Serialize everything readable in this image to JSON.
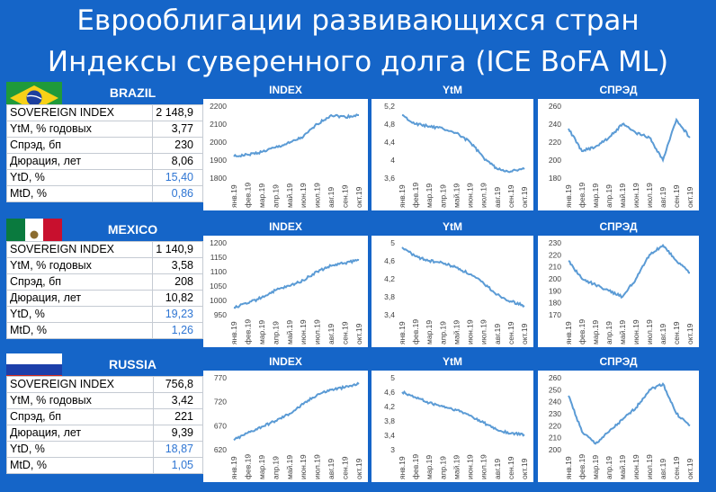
{
  "title_line1": "Еврооблигации развивающихся стран",
  "title_line2": "Индексы суверенного долга (ICE BoFA ML)",
  "chart_headers": [
    "INDEX",
    "YtM",
    "СПРЭД"
  ],
  "colors": {
    "background": "#1565c8",
    "line": "#5b9bd5",
    "blue_value": "#2e75d3"
  },
  "months": [
    "янв.19",
    "фев.19",
    "мар.19",
    "апр.19",
    "май.19",
    "июн.19",
    "июл.19",
    "авг.19",
    "сен.19",
    "окт.19"
  ],
  "sections": [
    {
      "country": "BRAZIL",
      "flag": "brazil-flag",
      "rows": [
        {
          "label": "SOVEREIGN INDEX",
          "value": "2 148,9",
          "blue": false
        },
        {
          "label": "YtM, % годовых",
          "value": "3,77",
          "blue": false
        },
        {
          "label": "Спрэд, бп",
          "value": "230",
          "blue": false
        },
        {
          "label": "Дюрация, лет",
          "value": "8,06",
          "blue": false
        },
        {
          "label": "YtD, %",
          "value": "15,40",
          "blue": true
        },
        {
          "label": "MtD, %",
          "value": "0,86",
          "blue": true
        }
      ]
    },
    {
      "country": "MEXICO",
      "flag": "mexico-flag",
      "rows": [
        {
          "label": "SOVEREIGN INDEX",
          "value": "1 140,9",
          "blue": false
        },
        {
          "label": "YtM, % годовых",
          "value": "3,58",
          "blue": false
        },
        {
          "label": "Спрэд, бп",
          "value": "208",
          "blue": false
        },
        {
          "label": "Дюрация, лет",
          "value": "10,82",
          "blue": false
        },
        {
          "label": "YtD, %",
          "value": "19,23",
          "blue": true
        },
        {
          "label": "MtD, %",
          "value": "1,26",
          "blue": true
        }
      ]
    },
    {
      "country": "RUSSIA",
      "flag": "russia-flag",
      "rows": [
        {
          "label": "SOVEREIGN INDEX",
          "value": "756,8",
          "blue": false
        },
        {
          "label": "YtM, % годовых",
          "value": "3,42",
          "blue": false
        },
        {
          "label": "Спрэд, бп",
          "value": "221",
          "blue": false
        },
        {
          "label": "Дюрация, лет",
          "value": "9,39",
          "blue": false
        },
        {
          "label": "YtD, %",
          "value": "18,87",
          "blue": true
        },
        {
          "label": "MtD, %",
          "value": "1,05",
          "blue": true
        }
      ]
    }
  ],
  "chart_data": [
    {
      "type": "line",
      "title": "INDEX",
      "country": "BRAZIL",
      "ylim": [
        1800,
        2200
      ],
      "yticks": [
        1800,
        1900,
        2000,
        2100,
        2200
      ],
      "x": [
        "янв.19",
        "фев.19",
        "мар.19",
        "апр.19",
        "май.19",
        "июн.19",
        "июл.19",
        "авг.19",
        "сен.19",
        "окт.19"
      ],
      "values": [
        1920,
        1930,
        1945,
        1970,
        1995,
        2030,
        2100,
        2150,
        2140,
        2150
      ]
    },
    {
      "type": "line",
      "title": "YtM",
      "country": "BRAZIL",
      "ylim": [
        3.6,
        5.2
      ],
      "yticks": [
        3.6,
        4.0,
        4.4,
        4.8,
        5.2
      ],
      "x": [
        "янв.19",
        "фев.19",
        "мар.19",
        "апр.19",
        "май.19",
        "июн.19",
        "июл.19",
        "авг.19",
        "сен.19",
        "окт.19"
      ],
      "values": [
        5.0,
        4.8,
        4.75,
        4.7,
        4.6,
        4.4,
        4.05,
        3.8,
        3.75,
        3.8
      ]
    },
    {
      "type": "line",
      "title": "СПРЭД",
      "country": "BRAZIL",
      "ylim": [
        180,
        260
      ],
      "yticks": [
        180,
        200,
        220,
        240,
        260
      ],
      "x": [
        "янв.19",
        "фев.19",
        "мар.19",
        "апр.19",
        "май.19",
        "июн.19",
        "июл.19",
        "авг.19",
        "сен.19",
        "окт.19"
      ],
      "values": [
        235,
        210,
        215,
        225,
        240,
        230,
        225,
        200,
        245,
        225
      ]
    },
    {
      "type": "line",
      "title": "INDEX",
      "country": "MEXICO",
      "ylim": [
        950,
        1200
      ],
      "yticks": [
        950,
        1000,
        1050,
        1100,
        1150,
        1200
      ],
      "x": [
        "янв.19",
        "фев.19",
        "мар.19",
        "апр.19",
        "май.19",
        "июн.19",
        "июл.19",
        "авг.19",
        "сен.19",
        "окт.19"
      ],
      "values": [
        975,
        990,
        1010,
        1035,
        1050,
        1070,
        1100,
        1120,
        1130,
        1140
      ]
    },
    {
      "type": "line",
      "title": "YtM",
      "country": "MEXICO",
      "ylim": [
        3.4,
        5.0
      ],
      "yticks": [
        3.4,
        3.8,
        4.2,
        4.6,
        5.0
      ],
      "x": [
        "янв.19",
        "фев.19",
        "мар.19",
        "апр.19",
        "май.19",
        "июн.19",
        "июл.19",
        "авг.19",
        "сен.19",
        "окт.19"
      ],
      "values": [
        4.9,
        4.7,
        4.6,
        4.55,
        4.45,
        4.3,
        4.1,
        3.85,
        3.7,
        3.6
      ]
    },
    {
      "type": "line",
      "title": "СПРЭД",
      "country": "MEXICO",
      "ylim": [
        170,
        230
      ],
      "yticks": [
        170,
        180,
        190,
        200,
        210,
        220,
        230
      ],
      "x": [
        "янв.19",
        "фев.19",
        "мар.19",
        "апр.19",
        "май.19",
        "июн.19",
        "июл.19",
        "авг.19",
        "сен.19",
        "окт.19"
      ],
      "values": [
        215,
        200,
        195,
        190,
        185,
        200,
        220,
        228,
        215,
        205
      ]
    },
    {
      "type": "line",
      "title": "INDEX",
      "country": "RUSSIA",
      "ylim": [
        620,
        770
      ],
      "yticks": [
        620,
        670,
        720,
        770
      ],
      "x": [
        "янв.19",
        "фев.19",
        "мар.19",
        "апр.19",
        "май.19",
        "июн.19",
        "июл.19",
        "авг.19",
        "сен.19",
        "окт.19"
      ],
      "values": [
        640,
        655,
        668,
        680,
        695,
        715,
        735,
        745,
        750,
        757
      ]
    },
    {
      "type": "line",
      "title": "YtM",
      "country": "RUSSIA",
      "ylim": [
        3.0,
        5.0
      ],
      "yticks": [
        3.0,
        3.4,
        3.8,
        4.2,
        4.6,
        5.0
      ],
      "x": [
        "янв.19",
        "фев.19",
        "мар.19",
        "апр.19",
        "май.19",
        "июн.19",
        "июл.19",
        "авг.19",
        "сен.19",
        "окт.19"
      ],
      "values": [
        4.6,
        4.45,
        4.3,
        4.2,
        4.1,
        3.95,
        3.75,
        3.55,
        3.45,
        3.42
      ]
    },
    {
      "type": "line",
      "title": "СПРЭД",
      "country": "RUSSIA",
      "ylim": [
        200,
        260
      ],
      "yticks": [
        200,
        210,
        220,
        230,
        240,
        250,
        260
      ],
      "x": [
        "янв.19",
        "фев.19",
        "мар.19",
        "апр.19",
        "май.19",
        "июн.19",
        "июл.19",
        "авг.19",
        "сен.19",
        "окт.19"
      ],
      "values": [
        245,
        215,
        205,
        215,
        225,
        235,
        250,
        255,
        230,
        220
      ]
    }
  ]
}
